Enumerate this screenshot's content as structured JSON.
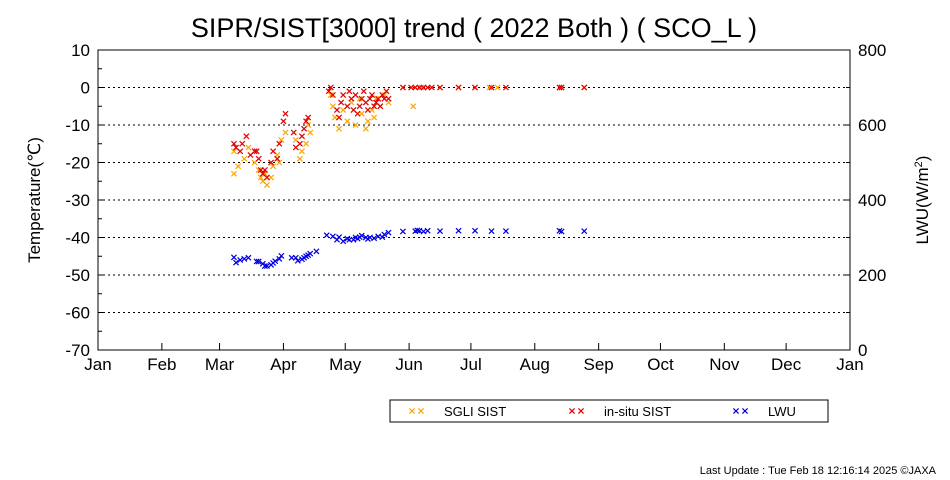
{
  "chart_data": {
    "type": "scatter",
    "title": "SIPR/SIST[3000] trend ( 2022 Both ) ( SCO_L )",
    "ylabel": "Temperature(℃)",
    "y2label_main": "LWU(W/m",
    "y2label_sup": "2",
    "y2label_end": ")",
    "ylim": [
      -70,
      10
    ],
    "y2lim": [
      0,
      800
    ],
    "xlim": [
      0,
      365
    ],
    "y_ticks": [
      "10",
      "0",
      "-10",
      "-20",
      "-30",
      "-40",
      "-50",
      "-60",
      "-70"
    ],
    "y2_ticks": [
      "800",
      "600",
      "400",
      "200",
      "0"
    ],
    "x_ticks": [
      "Jan",
      "Feb",
      "Mar",
      "Apr",
      "May",
      "Jun",
      "Jul",
      "Aug",
      "Sep",
      "Oct",
      "Nov",
      "Dec",
      "Jan"
    ],
    "grid": "dotted horizontal",
    "legend_placement": "bottom-right",
    "series": [
      {
        "name": "SGLI SIST",
        "color": "#ffa500",
        "axis": "left",
        "points": [
          [
            66,
            -23
          ],
          [
            66,
            -17
          ],
          [
            68,
            -21
          ],
          [
            71,
            -19
          ],
          [
            73,
            -16
          ],
          [
            76,
            -20
          ],
          [
            78,
            -22
          ],
          [
            79,
            -24
          ],
          [
            80,
            -25
          ],
          [
            81,
            -23
          ],
          [
            82,
            -26
          ],
          [
            84,
            -24
          ],
          [
            85,
            -21
          ],
          [
            87,
            -18
          ],
          [
            88,
            -20
          ],
          [
            89,
            -14
          ],
          [
            91,
            -12
          ],
          [
            96,
            -14
          ],
          [
            98,
            -19
          ],
          [
            99,
            -17
          ],
          [
            101,
            -15
          ],
          [
            102,
            -10
          ],
          [
            103,
            -12
          ],
          [
            113,
            -2
          ],
          [
            114,
            -5
          ],
          [
            115,
            -8
          ],
          [
            117,
            -11
          ],
          [
            119,
            -6
          ],
          [
            121,
            -9
          ],
          [
            123,
            -4
          ],
          [
            125,
            -10
          ],
          [
            127,
            -3
          ],
          [
            128,
            -7
          ],
          [
            130,
            -11
          ],
          [
            131,
            -9
          ],
          [
            133,
            -6
          ],
          [
            134,
            -8
          ],
          [
            135,
            -3
          ],
          [
            137,
            -5
          ],
          [
            139,
            -2
          ],
          [
            141,
            -4
          ],
          [
            148,
            0
          ],
          [
            153,
            -5
          ],
          [
            154,
            0
          ],
          [
            157,
            0
          ],
          [
            160,
            0
          ],
          [
            166,
            0
          ],
          [
            175,
            0
          ],
          [
            183,
            0
          ],
          [
            190,
            0
          ],
          [
            194,
            0
          ],
          [
            225,
            0
          ],
          [
            236,
            0
          ]
        ]
      },
      {
        "name": "in-situ SIST",
        "color": "#e00000",
        "axis": "left",
        "points": [
          [
            66,
            -15
          ],
          [
            67,
            -16
          ],
          [
            69,
            -17
          ],
          [
            70,
            -15
          ],
          [
            72,
            -13
          ],
          [
            74,
            -18
          ],
          [
            76,
            -17
          ],
          [
            77,
            -17
          ],
          [
            78,
            -19
          ],
          [
            79,
            -22
          ],
          [
            80,
            -23
          ],
          [
            81,
            -22
          ],
          [
            82,
            -24
          ],
          [
            84,
            -20
          ],
          [
            85,
            -17
          ],
          [
            87,
            -19
          ],
          [
            88,
            -15
          ],
          [
            90,
            -9
          ],
          [
            91,
            -7
          ],
          [
            95,
            -12
          ],
          [
            96,
            -16
          ],
          [
            98,
            -15
          ],
          [
            99,
            -13
          ],
          [
            100,
            -11
          ],
          [
            101,
            -9
          ],
          [
            102,
            -8
          ],
          [
            112,
            -1
          ],
          [
            113,
            0
          ],
          [
            114,
            -2
          ],
          [
            116,
            -6
          ],
          [
            117,
            -8
          ],
          [
            118,
            -4
          ],
          [
            119,
            -2
          ],
          [
            121,
            -5
          ],
          [
            122,
            -1
          ],
          [
            123,
            -3
          ],
          [
            124,
            -6
          ],
          [
            125,
            -2
          ],
          [
            126,
            -7
          ],
          [
            127,
            -5
          ],
          [
            128,
            -3
          ],
          [
            129,
            -1
          ],
          [
            130,
            -4
          ],
          [
            131,
            -6
          ],
          [
            132,
            -3
          ],
          [
            133,
            -2
          ],
          [
            134,
            -5
          ],
          [
            135,
            -4
          ],
          [
            136,
            -3
          ],
          [
            137,
            -5
          ],
          [
            138,
            -2
          ],
          [
            139,
            -3
          ],
          [
            140,
            -1
          ],
          [
            141,
            -3
          ],
          [
            148,
            0
          ],
          [
            152,
            0
          ],
          [
            154,
            0
          ],
          [
            156,
            0
          ],
          [
            158,
            0
          ],
          [
            160,
            0
          ],
          [
            162,
            0
          ],
          [
            166,
            0
          ],
          [
            175,
            0
          ],
          [
            183,
            0
          ],
          [
            191,
            0
          ],
          [
            198,
            0
          ],
          [
            224,
            0
          ],
          [
            225,
            0
          ],
          [
            236,
            0
          ]
        ]
      },
      {
        "name": "LWU",
        "color": "#0000e0",
        "axis": "right",
        "points": [
          [
            66,
            247
          ],
          [
            67,
            233
          ],
          [
            69,
            240
          ],
          [
            71,
            243
          ],
          [
            73,
            246
          ],
          [
            77,
            236
          ],
          [
            78,
            236
          ],
          [
            80,
            230
          ],
          [
            81,
            224
          ],
          [
            82,
            224
          ],
          [
            84,
            227
          ],
          [
            85,
            232
          ],
          [
            86,
            237
          ],
          [
            88,
            243
          ],
          [
            89,
            251
          ],
          [
            94,
            246
          ],
          [
            96,
            246
          ],
          [
            97,
            238
          ],
          [
            99,
            242
          ],
          [
            100,
            246
          ],
          [
            101,
            250
          ],
          [
            102,
            253
          ],
          [
            103,
            257
          ],
          [
            106,
            263
          ],
          [
            111,
            306
          ],
          [
            114,
            303
          ],
          [
            116,
            294
          ],
          [
            117,
            301
          ],
          [
            119,
            290
          ],
          [
            121,
            297
          ],
          [
            122,
            294
          ],
          [
            124,
            294
          ],
          [
            125,
            300
          ],
          [
            126,
            297
          ],
          [
            127,
            301
          ],
          [
            128,
            305
          ],
          [
            130,
            300
          ],
          [
            131,
            296
          ],
          [
            132,
            300
          ],
          [
            134,
            298
          ],
          [
            136,
            303
          ],
          [
            138,
            301
          ],
          [
            139,
            308
          ],
          [
            141,
            313
          ],
          [
            148,
            316
          ],
          [
            154,
            317
          ],
          [
            155,
            319
          ],
          [
            156,
            318
          ],
          [
            158,
            316
          ],
          [
            160,
            318
          ],
          [
            166,
            317
          ],
          [
            175,
            318
          ],
          [
            183,
            318
          ],
          [
            191,
            317
          ],
          [
            198,
            317
          ],
          [
            224,
            318
          ],
          [
            225,
            316
          ],
          [
            236,
            317
          ]
        ]
      }
    ]
  },
  "footer": {
    "last_update": "Last Update : Tue Feb 18 12:16:14 2025  ©JAXA"
  }
}
